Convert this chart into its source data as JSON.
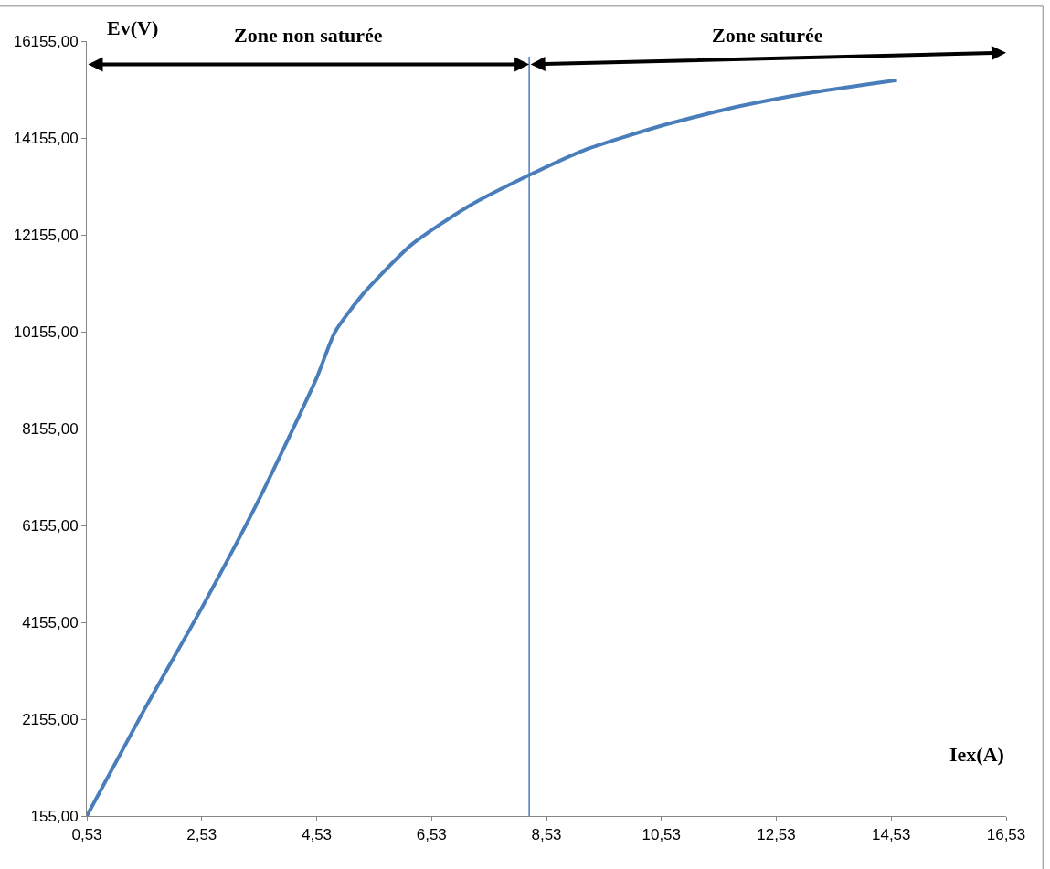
{
  "chart_data": {
    "type": "line",
    "xlabel": "Iex(A)",
    "ylabel": "Ev(V)",
    "xlim": [
      0.53,
      16.53
    ],
    "xticks": [
      {
        "value": 0.53,
        "label": "0,53"
      },
      {
        "value": 2.53,
        "label": "2,53"
      },
      {
        "value": 4.53,
        "label": "4,53"
      },
      {
        "value": 6.53,
        "label": "6,53"
      },
      {
        "value": 8.53,
        "label": "8,53"
      },
      {
        "value": 10.53,
        "label": "10,53"
      },
      {
        "value": 12.53,
        "label": "12,53"
      },
      {
        "value": 14.53,
        "label": "14,53"
      },
      {
        "value": 16.53,
        "label": "16,53"
      }
    ],
    "ylim": [
      155,
      16155
    ],
    "yticks": [
      {
        "value": 155,
        "label": "155,00"
      },
      {
        "value": 2155,
        "label": "2155,00"
      },
      {
        "value": 4155,
        "label": "4155,00"
      },
      {
        "value": 6155,
        "label": "6155,00"
      },
      {
        "value": 8155,
        "label": "8155,00"
      },
      {
        "value": 10155,
        "label": "10155,00"
      },
      {
        "value": 12155,
        "label": "12155,00"
      },
      {
        "value": 14155,
        "label": "14155,00"
      },
      {
        "value": 16155,
        "label": "16155,00"
      }
    ],
    "x": [
      0.53,
      1.53,
      2.53,
      3.53,
      4.53,
      4.85,
      5.35,
      6.18,
      7.18,
      8.25,
      9.18,
      10.51,
      11.85,
      13.18,
      14.63
    ],
    "series": [
      {
        "color": "#4a7ebb",
        "values": [
          155,
          2350,
          4450,
          6700,
          9200,
          10150,
          10950,
          11950,
          12750,
          13400,
          13900,
          14400,
          14800,
          15100,
          15350
        ]
      }
    ],
    "ref_lines": [
      {
        "axis": "x",
        "value": 8.23,
        "color": "#4a7ebb"
      }
    ],
    "annotations": [
      "Zone non saturée",
      "Zone saturée"
    ],
    "marker": "none",
    "line_style": "solid"
  }
}
